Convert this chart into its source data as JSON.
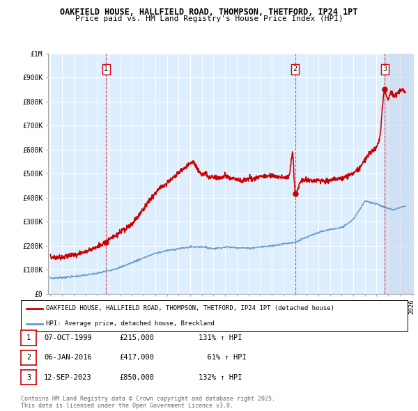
{
  "title_line1": "OAKFIELD HOUSE, HALLFIELD ROAD, THOMPSON, THETFORD, IP24 1PT",
  "title_line2": "Price paid vs. HM Land Registry's House Price Index (HPI)",
  "ylabel_ticks": [
    "£0",
    "£100K",
    "£200K",
    "£300K",
    "£400K",
    "£500K",
    "£600K",
    "£700K",
    "£800K",
    "£900K",
    "£1M"
  ],
  "ytick_vals": [
    0,
    100000,
    200000,
    300000,
    400000,
    500000,
    600000,
    700000,
    800000,
    900000,
    1000000
  ],
  "ylim": [
    0,
    1000000
  ],
  "xlim_start": 1994.8,
  "xlim_end": 2026.2,
  "xtick_years": [
    1995,
    1996,
    1997,
    1998,
    1999,
    2000,
    2001,
    2002,
    2003,
    2004,
    2005,
    2006,
    2007,
    2008,
    2009,
    2010,
    2011,
    2012,
    2013,
    2014,
    2015,
    2016,
    2017,
    2018,
    2019,
    2020,
    2021,
    2022,
    2023,
    2024,
    2025,
    2026
  ],
  "sale_dates": [
    1999.77,
    2016.02,
    2023.7
  ],
  "sale_prices": [
    215000,
    417000,
    850000
  ],
  "sale_labels": [
    "1",
    "2",
    "3"
  ],
  "legend_red_label": "OAKFIELD HOUSE, HALLFIELD ROAD, THOMPSON, THETFORD, IP24 1PT (detached house)",
  "legend_blue_label": "HPI: Average price, detached house, Breckland",
  "table_data": [
    {
      "num": "1",
      "date": "07-OCT-1999",
      "price": "£215,000",
      "hpi": "131% ↑ HPI"
    },
    {
      "num": "2",
      "date": "06-JAN-2016",
      "price": "£417,000",
      "hpi": "  61% ↑ HPI"
    },
    {
      "num": "3",
      "date": "12-SEP-2023",
      "price": "£850,000",
      "hpi": "132% ↑ HPI"
    }
  ],
  "footnote": "Contains HM Land Registry data © Crown copyright and database right 2025.\nThis data is licensed under the Open Government Licence v3.0.",
  "red_color": "#cc0000",
  "blue_color": "#6699cc",
  "highlight_color": "#ddeeff",
  "background_color": "#ffffff",
  "plot_bg_color": "#ddeeff",
  "grid_color": "#ffffff"
}
